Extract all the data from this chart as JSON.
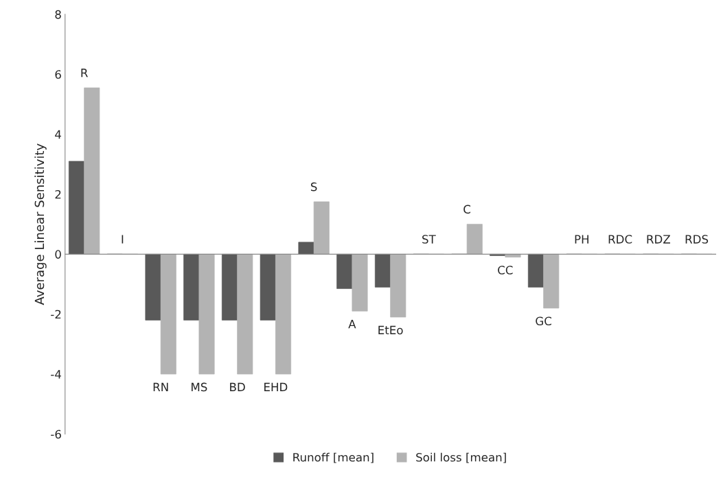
{
  "chart_data": {
    "type": "bar",
    "ylabel": "Average Linear Sensitivity",
    "categories": [
      "R",
      "I",
      "RN",
      "MS",
      "BD",
      "EHD",
      "S",
      "A",
      "EtEo",
      "ST",
      "C",
      "CC",
      "GC",
      "PH",
      "RDC",
      "RDZ",
      "RDS"
    ],
    "series": [
      {
        "name": "Runoff [mean]",
        "color": "#595959",
        "values": [
          3.1,
          0,
          -2.2,
          -2.2,
          -2.2,
          -2.2,
          0.4,
          -1.15,
          -1.1,
          0,
          0,
          -0.05,
          -1.1,
          0,
          0,
          0,
          0
        ]
      },
      {
        "name": "Soil loss [mean]",
        "color": "#b3b3b3",
        "values": [
          5.55,
          0,
          -4.0,
          -4.0,
          -4.0,
          -4.0,
          1.75,
          -1.9,
          -2.1,
          0,
          1.0,
          -0.1,
          -1.8,
          0,
          0,
          0,
          0
        ]
      }
    ],
    "ylim": [
      -6,
      8
    ],
    "yticks": [
      -6,
      -4,
      -2,
      0,
      2,
      4,
      6,
      8
    ],
    "grid": false,
    "legend": "bottom",
    "tick_labels": "y"
  }
}
